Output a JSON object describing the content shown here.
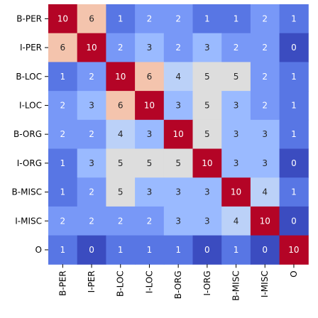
{
  "chart_data": {
    "type": "heatmap",
    "title": "",
    "xlabel": "",
    "ylabel": "",
    "x_categories": [
      "B-PER",
      "I-PER",
      "B-LOC",
      "I-LOC",
      "B-ORG",
      "I-ORG",
      "B-MISC",
      "I-MISC",
      "O"
    ],
    "y_categories": [
      "B-PER",
      "I-PER",
      "B-LOC",
      "I-LOC",
      "B-ORG",
      "I-ORG",
      "B-MISC",
      "I-MISC",
      "O"
    ],
    "values": [
      [
        10,
        6,
        1,
        2,
        2,
        1,
        1,
        2,
        1
      ],
      [
        6,
        10,
        2,
        3,
        2,
        3,
        2,
        2,
        0
      ],
      [
        1,
        2,
        10,
        6,
        4,
        5,
        5,
        2,
        1
      ],
      [
        2,
        3,
        6,
        10,
        3,
        5,
        3,
        2,
        1
      ],
      [
        2,
        2,
        4,
        3,
        10,
        5,
        3,
        3,
        1
      ],
      [
        1,
        3,
        5,
        5,
        5,
        10,
        3,
        3,
        0
      ],
      [
        1,
        2,
        5,
        3,
        3,
        3,
        10,
        4,
        1
      ],
      [
        2,
        2,
        2,
        2,
        3,
        3,
        4,
        10,
        0
      ],
      [
        1,
        0,
        1,
        1,
        1,
        0,
        1,
        0,
        10
      ]
    ],
    "value_range": [
      0,
      10
    ],
    "colormap": "coolwarm",
    "colorbar": false,
    "grid": false
  }
}
